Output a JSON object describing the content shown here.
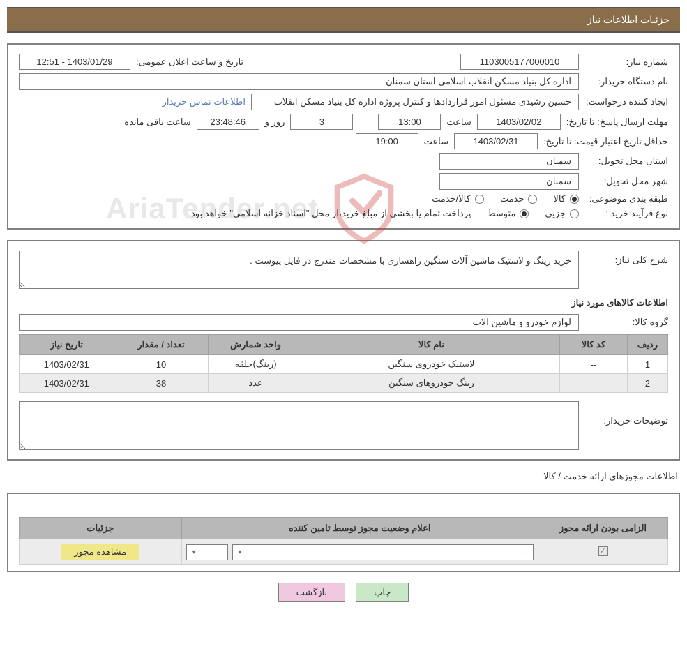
{
  "header": {
    "title": "جزئیات اطلاعات نیاز"
  },
  "fields": {
    "need_number_label": "شماره نیاز:",
    "need_number": "1103005177000010",
    "announce_label": "تاریخ و ساعت اعلان عمومی:",
    "announce_value": "1403/01/29 - 12:51",
    "buyer_label": "نام دستگاه خریدار:",
    "buyer_value": "اداره کل بنیاد مسکن انقلاب اسلامی استان سمنان",
    "requester_label": "ایجاد کننده درخواست:",
    "requester_value": "حسین رشیدی مسئول امور قراردادها و کنترل پروژه اداره کل بنیاد مسکن انقلاب",
    "contact_link": "اطلاعات تماس خریدار",
    "deadline_label": "مهلت ارسال پاسخ: تا تاریخ:",
    "deadline_date": "1403/02/02",
    "time_label": "ساعت",
    "deadline_time": "13:00",
    "days_value": "3",
    "days_and": "روز و",
    "countdown": "23:48:46",
    "remaining": "ساعت باقی مانده",
    "validity_label": "حداقل تاریخ اعتبار قیمت: تا تاریخ:",
    "validity_date": "1403/02/31",
    "validity_time": "19:00",
    "delivery_province_label": "استان محل تحویل:",
    "delivery_province": "سمنان",
    "delivery_city_label": "شهر محل تحویل:",
    "delivery_city": "سمنان",
    "category_label": "طبقه بندی موضوعی:",
    "cat_goods": "کالا",
    "cat_service": "خدمت",
    "cat_goods_service": "کالا/خدمت",
    "process_label": "نوع فرآیند خرید :",
    "proc_minor": "جزیی",
    "proc_medium": "متوسط",
    "payment_note": "پرداخت تمام یا بخشی از مبلغ خرید،از محل \"اسناد خزانه اسلامی\" خواهد بود."
  },
  "need": {
    "desc_label": "شرح کلی نیاز:",
    "desc_value": "خرید رینگ و لاستیک ماشین آلات سنگین راهسازی با مشخصات مندرج در فایل پیوست .",
    "goods_section": "اطلاعات کالاهای مورد نیاز",
    "group_label": "گروه کالا:",
    "group_value": "لوازم خودرو و ماشین آلات"
  },
  "table": {
    "headers": {
      "row": "ردیف",
      "code": "کد کالا",
      "name": "نام کالا",
      "unit": "واحد شمارش",
      "qty": "تعداد / مقدار",
      "date": "تاریخ نیاز"
    },
    "rows": [
      {
        "n": "1",
        "code": "--",
        "name": "لاستیک خودروی سنگین",
        "unit": "(رینگ)حلقه",
        "qty": "10",
        "date": "1403/02/31"
      },
      {
        "n": "2",
        "code": "--",
        "name": "رینگ خودروهای سنگین",
        "unit": "عدد",
        "qty": "38",
        "date": "1403/02/31"
      }
    ]
  },
  "buyer_notes_label": "توضیحات خریدار:",
  "permits": {
    "section_label": "اطلاعات مجوزهای ارائه خدمت / کالا",
    "headers": {
      "mandatory": "الزامی بودن ارائه مجوز",
      "status": "اعلام وضعیت مجوز توسط تامین کننده",
      "details": "جزئیات"
    },
    "select_placeholder": "--",
    "view_btn": "مشاهده مجوز"
  },
  "buttons": {
    "print": "چاپ",
    "back": "بازگشت"
  },
  "watermark": {
    "text": "AriaTender.net"
  },
  "colors": {
    "header_bg": "#8a6d4b",
    "header_border": "#555555",
    "container_border": "#808080",
    "input_border": "#808080",
    "link": "#5a7cb8",
    "th_bg": "#b8b8b8",
    "row_alt": "#ececec",
    "btn_view": "#f0e888",
    "btn_print": "#c8e8c8",
    "btn_back": "#f0c8e0",
    "watermark": "#c0c0c0",
    "shield": "#d04040"
  }
}
